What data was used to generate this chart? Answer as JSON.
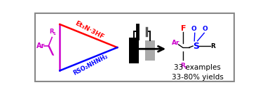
{
  "bg_color": "#ffffff",
  "border_color": "#888888",
  "triangle_left_color": "#cc00cc",
  "triangle_top_color": "#ff0000",
  "triangle_bottom_color": "#0000ff",
  "reagent_top": "Et₃N·3HF",
  "reagent_bottom": "RSO₂NHNH₂",
  "text_examples": "33 examples",
  "text_yields": "33-80% yields"
}
